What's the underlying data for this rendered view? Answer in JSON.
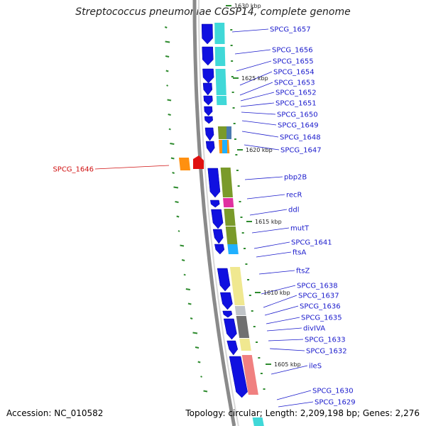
{
  "title": "Streptococcus pneumoniae CGSP14, complete genome",
  "accession_text": "Accession: NC_010582",
  "summary_text": "Topology: circular; Length: 2,209,198 bp; Genes: 2,276",
  "colors": {
    "backbone": "#8a8a8a",
    "strand_arrow": "#1010e0",
    "label": "#1a1acc",
    "highlight_label": "#d01010",
    "tick": "#2e8b2e",
    "cog_cyan": "#40d8d8",
    "cog_olive": "#7a9a2a",
    "cog_magenta": "#e030a0",
    "cog_sky": "#20b0ff",
    "cog_khaki": "#f0e890",
    "cog_grey": "#707070",
    "cog_lightgrey": "#c0c4c8",
    "cog_salmon": "#f08080",
    "cog_orange": "#ff9010",
    "cog_steel": "#4a7ab0",
    "cog_red": "#e01010"
  },
  "kbp_labels": [
    "1630 kbp",
    "1625 kbp",
    "1620 kbp",
    "1615 kbp",
    "1610 kbp",
    "1605 kbp"
  ],
  "genes": [
    {
      "label": "SPCG_1657"
    },
    {
      "label": "SPCG_1656"
    },
    {
      "label": "SPCG_1655"
    },
    {
      "label": "SPCG_1654"
    },
    {
      "label": "SPCG_1653"
    },
    {
      "label": "SPCG_1652"
    },
    {
      "label": "SPCG_1651"
    },
    {
      "label": "SPCG_1650"
    },
    {
      "label": "SPCG_1649"
    },
    {
      "label": "SPCG_1648"
    },
    {
      "label": "SPCG_1647"
    },
    {
      "label": "SPCG_1646",
      "highlight": true
    },
    {
      "label": "pbp2B"
    },
    {
      "label": "recR"
    },
    {
      "label": "ddl"
    },
    {
      "label": "mutT"
    },
    {
      "label": "SPCG_1641"
    },
    {
      "label": "ftsA"
    },
    {
      "label": "ftsZ"
    },
    {
      "label": "SPCG_1638"
    },
    {
      "label": "SPCG_1637"
    },
    {
      "label": "SPCG_1636"
    },
    {
      "label": "SPCG_1635"
    },
    {
      "label": "divIVA"
    },
    {
      "label": "SPCG_1633"
    },
    {
      "label": "SPCG_1632"
    },
    {
      "label": "ileS"
    },
    {
      "label": "SPCG_1630"
    },
    {
      "label": "SPCG_1629"
    }
  ]
}
